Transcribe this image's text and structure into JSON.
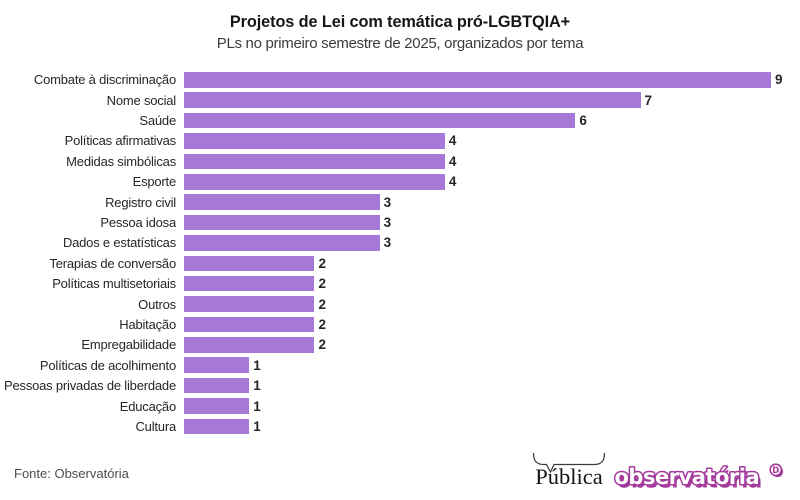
{
  "header": {
    "title": "Projetos de Lei com temática pró-LGBTQIA+",
    "subtitle": "PLs no primeiro semestre de 2025, organizados por tema"
  },
  "chart_data": {
    "type": "bar",
    "orientation": "horizontal",
    "title": "Projetos de Lei com temática pró-LGBTQIA+",
    "subtitle": "PLs no primeiro semestre de 2025, organizados por tema",
    "categories": [
      "Combate à discriminação",
      "Nome social",
      "Saúde",
      "Políticas afirmativas",
      "Medidas simbólicas",
      "Esporte",
      "Registro civil",
      "Pessoa idosa",
      "Dados e estatísticas",
      "Terapias de conversão",
      "Políticas multisetoriais",
      "Outros",
      "Habitação",
      "Empregabilidade",
      "Políticas de acolhimento",
      "Pessoas privadas de liberdade",
      "Educação",
      "Cultura"
    ],
    "values": [
      9,
      7,
      6,
      4,
      4,
      4,
      3,
      3,
      3,
      2,
      2,
      2,
      2,
      2,
      1,
      1,
      1,
      1
    ],
    "xlabel": "",
    "ylabel": "",
    "xlim": [
      0,
      9
    ],
    "grid": false,
    "legend": false,
    "bar_color": "#a678d8",
    "value_labels": true
  },
  "footer": {
    "source": "Fonte: Observatória",
    "publica_logo_text": "Pública",
    "observatoria_logo_text": "observatória",
    "observatoria_badge": "D"
  },
  "colors": {
    "background": "#ffffff",
    "bar": "#a678d8",
    "title": "#161616",
    "subtitle": "#3d3d3d",
    "labels": "#262626",
    "source": "#4d4d4d",
    "observatoria_magenta": "#a33a9c",
    "publica_black": "#151515"
  }
}
